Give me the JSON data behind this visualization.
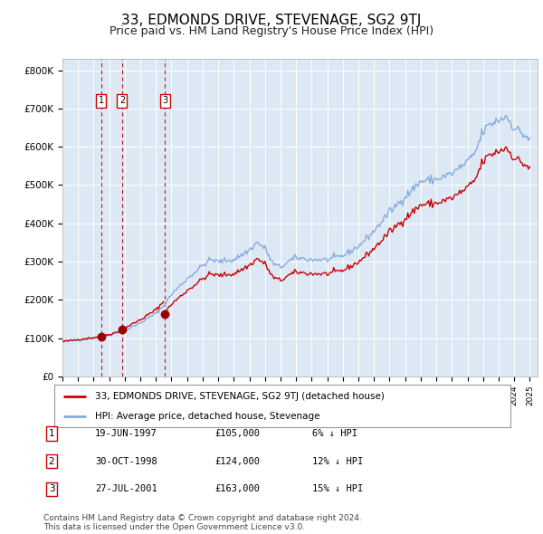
{
  "title": "33, EDMONDS DRIVE, STEVENAGE, SG2 9TJ",
  "subtitle": "Price paid vs. HM Land Registry's House Price Index (HPI)",
  "title_fontsize": 11,
  "subtitle_fontsize": 9,
  "background_color": "#ffffff",
  "plot_bg_color": "#dde8f5",
  "grid_color": "#ffffff",
  "ylim": [
    0,
    830000
  ],
  "yticks": [
    0,
    100000,
    200000,
    300000,
    400000,
    500000,
    600000,
    700000,
    800000
  ],
  "ytick_labels": [
    "£0",
    "£100K",
    "£200K",
    "£300K",
    "£400K",
    "£500K",
    "£600K",
    "£700K",
    "£800K"
  ],
  "sale_color": "#cc0000",
  "hpi_color": "#88aadd",
  "marker_color": "#990000",
  "vline_color": "#cc0000",
  "transactions": [
    {
      "label": "1",
      "date_decimal": 1997.47,
      "price": 105000,
      "text": "19-JUN-1997",
      "amount": "£105,000",
      "pct": "6% ↓ HPI"
    },
    {
      "label": "2",
      "date_decimal": 1998.83,
      "price": 124000,
      "text": "30-OCT-1998",
      "amount": "£124,000",
      "pct": "12% ↓ HPI"
    },
    {
      "label": "3",
      "date_decimal": 2001.57,
      "price": 163000,
      "text": "27-JUL-2001",
      "amount": "£163,000",
      "pct": "15% ↓ HPI"
    }
  ],
  "legend_sale_label": "33, EDMONDS DRIVE, STEVENAGE, SG2 9TJ (detached house)",
  "legend_hpi_label": "HPI: Average price, detached house, Stevenage",
  "footer": "Contains HM Land Registry data © Crown copyright and database right 2024.\nThis data is licensed under the Open Government Licence v3.0.",
  "xlim_start": 1995.0,
  "xlim_end": 2025.5
}
